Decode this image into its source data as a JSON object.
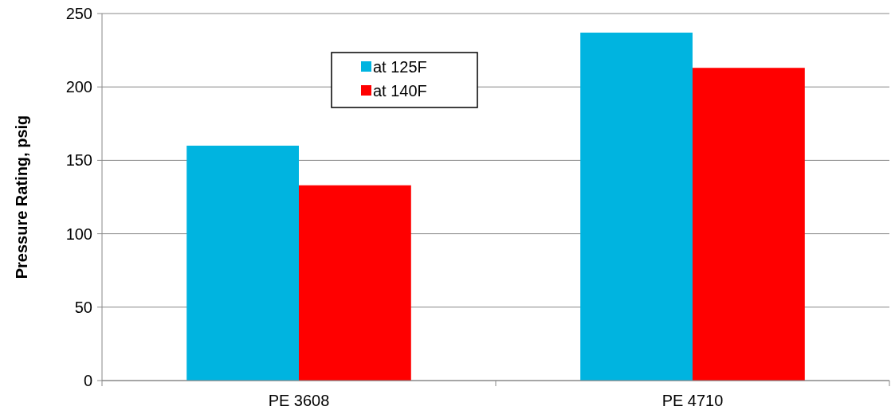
{
  "chart_data": {
    "type": "bar",
    "ylabel": "Pressure Rating, psig",
    "categories": [
      "PE 3608",
      "PE 4710"
    ],
    "series": [
      {
        "name": "at 125F",
        "color": "#00b4e0",
        "values": [
          160,
          237
        ]
      },
      {
        "name": "at 140F",
        "color": "#ff0000",
        "values": [
          133,
          213
        ]
      }
    ],
    "ylim": [
      0,
      250
    ],
    "yticks": [
      0,
      50,
      100,
      150,
      200,
      250
    ],
    "grid": "y",
    "legend": "top"
  }
}
